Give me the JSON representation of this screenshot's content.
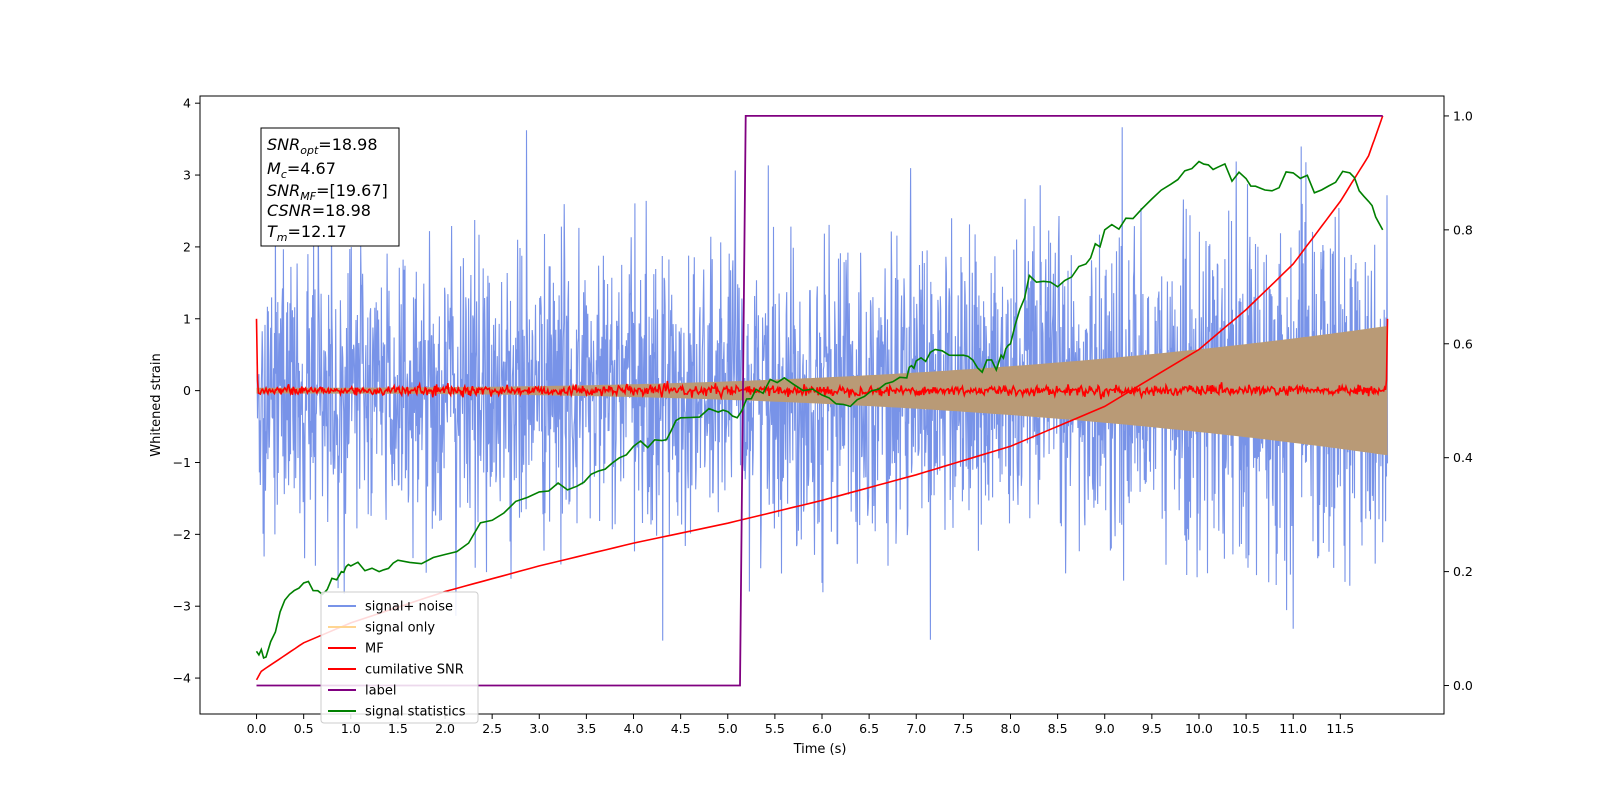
{
  "chart_data": {
    "type": "line",
    "xlabel": "Time (s)",
    "ylabel": "Whitened strain",
    "xlim": [
      -0.6,
      12.6
    ],
    "ylim": [
      -4.5,
      4.1
    ],
    "y2lim": [
      -0.05,
      1.035
    ],
    "x_ticks": [
      "0.0",
      "0.5",
      "1.0",
      "1.5",
      "2.0",
      "2.5",
      "3.0",
      "3.5",
      "4.0",
      "4.5",
      "5.0",
      "5.5",
      "6.0",
      "6.5",
      "7.0",
      "7.5",
      "8.0",
      "8.5",
      "9.0",
      "9.5",
      "10.0",
      "10.5",
      "11.0",
      "11.5"
    ],
    "y_ticks": [
      "4",
      "3",
      "2",
      "1",
      "0",
      "−1",
      "−2",
      "−3",
      "−4"
    ],
    "y2_ticks": [
      "1.0",
      "0.8",
      "0.6",
      "0.4",
      "0.2",
      "0.0"
    ],
    "duration": 12.0,
    "colors": {
      "noise": "#7893e8",
      "signal": "#b99a76",
      "mf": "#ff0000",
      "csnr": "#ff0000",
      "label": "#800080",
      "stats": "#008000"
    },
    "annotation": {
      "snr_opt": {
        "sym": "SNR",
        "sub": "opt",
        "val": "=18.98"
      },
      "mc": {
        "sym": "M",
        "sub": "c",
        "val": "=4.67"
      },
      "snr_mf": {
        "sym": "SNR",
        "sub": "MF",
        "val": "=[19.67]"
      },
      "csnr": {
        "sym": "CSNR",
        "sub": "",
        "val": "=18.98"
      },
      "tm": {
        "sym": "T",
        "sub": "m",
        "val": "=12.17"
      }
    },
    "legend": {
      "placement": "lower-left",
      "entries": [
        {
          "label": "signal+ noise",
          "color": "#7893e8"
        },
        {
          "label": "signal only",
          "color": "#ffd591"
        },
        {
          "label": "MF",
          "color": "#ff0000"
        },
        {
          "label": "cumilative SNR",
          "color": "#ff0000"
        },
        {
          "label": "label",
          "color": "#800080"
        },
        {
          "label": "signal statistics",
          "color": "#008000"
        }
      ]
    },
    "series": [
      {
        "name": "cumilative SNR",
        "axis": "right",
        "x": [
          0.0,
          0.05,
          0.5,
          1.0,
          2.0,
          3.0,
          4.0,
          5.0,
          6.0,
          7.0,
          8.0,
          9.0,
          10.0,
          10.5,
          11.0,
          11.5,
          11.8,
          11.95
        ],
        "y": [
          0.01,
          0.025,
          0.075,
          0.11,
          0.165,
          0.21,
          0.25,
          0.285,
          0.325,
          0.37,
          0.42,
          0.49,
          0.59,
          0.66,
          0.74,
          0.85,
          0.93,
          1.0
        ]
      },
      {
        "name": "label",
        "axis": "right",
        "x": [
          0.0,
          5.13,
          5.19,
          11.95
        ],
        "y": [
          0.0,
          0.0,
          1.0,
          1.0
        ]
      },
      {
        "name": "signal statistics",
        "axis": "right",
        "x": [
          0.0,
          0.1,
          0.3,
          0.5,
          0.7,
          0.9,
          1.0,
          1.3,
          1.5,
          2.0,
          2.5,
          3.0,
          3.4,
          3.7,
          4.0,
          4.3,
          4.5,
          4.9,
          5.1,
          5.3,
          5.6,
          6.0,
          6.3,
          6.6,
          6.9,
          7.0,
          7.2,
          7.5,
          7.7,
          7.9,
          8.0,
          8.2,
          8.5,
          8.8,
          9.0,
          9.3,
          9.7,
          10.0,
          10.2,
          10.5,
          10.7,
          11.0,
          11.3,
          11.6,
          11.8,
          11.95
        ],
        "y": [
          0.06,
          0.05,
          0.15,
          0.18,
          0.16,
          0.2,
          0.21,
          0.2,
          0.22,
          0.23,
          0.29,
          0.34,
          0.35,
          0.38,
          0.42,
          0.43,
          0.47,
          0.48,
          0.47,
          0.52,
          0.54,
          0.51,
          0.49,
          0.52,
          0.54,
          0.57,
          0.59,
          0.58,
          0.55,
          0.58,
          0.6,
          0.72,
          0.7,
          0.74,
          0.8,
          0.82,
          0.88,
          0.92,
          0.91,
          0.89,
          0.87,
          0.9,
          0.87,
          0.9,
          0.85,
          0.8
        ]
      }
    ]
  }
}
